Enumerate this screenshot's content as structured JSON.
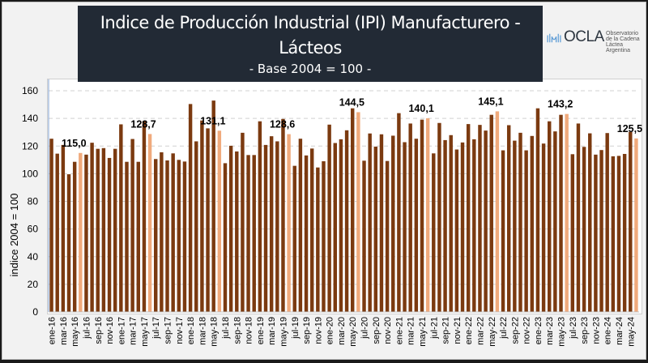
{
  "header": {
    "title": "Indice de Producción Industrial (IPI) Manufacturero - Lácteos",
    "title_line1": "Indice de Producción Industrial (IPI) Manufacturero -",
    "title_line2": "Lácteos",
    "subtitle": "- Base 2004 = 100 -"
  },
  "logo": {
    "name": "OCLA",
    "line1": "Observatorio",
    "line2": "de la Cadena Láctea",
    "line3": "Argentina",
    "icon": "wave-bars-icon"
  },
  "colors": {
    "bar_regular": "#7b3a10",
    "bar_highlight": "#f0aa7c",
    "title_bg": "#222a35",
    "gridline": "#d0d0d0"
  },
  "chart_data": {
    "type": "bar",
    "title": "Indice de Producción Industrial (IPI) Manufacturero - Lácteos",
    "subtitle": "- Base 2004 = 100 -",
    "xlabel": "",
    "ylabel": "indice 2004 = 100",
    "ylim": [
      0,
      160
    ],
    "yticks": [
      0,
      20,
      40,
      60,
      80,
      100,
      120,
      140,
      160
    ],
    "grid": true,
    "legend": "none",
    "x_tick_labels": [
      "ene-16",
      "mar-16",
      "may-16",
      "jul-16",
      "sep-16",
      "nov-16",
      "ene-17",
      "mar-17",
      "may-17",
      "jul-17",
      "sep-17",
      "nov-17",
      "ene-18",
      "mar-18",
      "may-18",
      "jul-18",
      "sep-18",
      "nov-18",
      "ene-19",
      "mar-19",
      "may-19",
      "jul-19",
      "sep-19",
      "nov-19",
      "ene-20",
      "mar-20",
      "may-20",
      "jul-20",
      "sep-20",
      "nov-20",
      "ene-21",
      "mar-21",
      "may-21",
      "jul-21",
      "sep-21",
      "nov-21",
      "ene-22",
      "mar-22",
      "may-22",
      "jul-22",
      "sep-22",
      "nov-22",
      "ene-23",
      "mar-23",
      "may-23",
      "jul-23",
      "sep-23",
      "nov-23",
      "ene-24",
      "mar-24",
      "may-24"
    ],
    "categories": [
      "ene-16",
      "feb-16",
      "mar-16",
      "abr-16",
      "may-16",
      "jun-16",
      "jul-16",
      "ago-16",
      "sep-16",
      "oct-16",
      "nov-16",
      "dic-16",
      "ene-17",
      "feb-17",
      "mar-17",
      "abr-17",
      "may-17",
      "jun-17",
      "jul-17",
      "ago-17",
      "sep-17",
      "oct-17",
      "nov-17",
      "dic-17",
      "ene-18",
      "feb-18",
      "mar-18",
      "abr-18",
      "may-18",
      "jun-18",
      "jul-18",
      "ago-18",
      "sep-18",
      "oct-18",
      "nov-18",
      "dic-18",
      "ene-19",
      "feb-19",
      "mar-19",
      "abr-19",
      "may-19",
      "jun-19",
      "jul-19",
      "ago-19",
      "sep-19",
      "oct-19",
      "nov-19",
      "dic-19",
      "ene-20",
      "feb-20",
      "mar-20",
      "abr-20",
      "may-20",
      "jun-20",
      "jul-20",
      "ago-20",
      "sep-20",
      "oct-20",
      "nov-20",
      "dic-20",
      "ene-21",
      "feb-21",
      "mar-21",
      "abr-21",
      "may-21",
      "jun-21",
      "jul-21",
      "ago-21",
      "sep-21",
      "oct-21",
      "nov-21",
      "dic-21",
      "ene-22",
      "feb-22",
      "mar-22",
      "abr-22",
      "may-22",
      "jun-22",
      "jul-22",
      "ago-22",
      "sep-22",
      "oct-22",
      "nov-22",
      "dic-22",
      "ene-23",
      "feb-23",
      "mar-23",
      "abr-23",
      "may-23",
      "jun-23",
      "jul-23",
      "ago-23",
      "sep-23",
      "oct-23",
      "nov-23",
      "dic-23",
      "ene-24",
      "feb-24",
      "mar-24",
      "abr-24",
      "may-24",
      "jun-24"
    ],
    "values": [
      125.3,
      114.5,
      120.8,
      99.6,
      108.6,
      115.0,
      113.8,
      122.4,
      118.0,
      118.5,
      111.4,
      118.0,
      135.7,
      108.6,
      125.1,
      108.6,
      138.0,
      128.7,
      110.6,
      115.5,
      109.6,
      114.7,
      110.0,
      108.8,
      150.4,
      123.4,
      138.5,
      132.8,
      152.9,
      131.1,
      107.6,
      120.2,
      116.1,
      129.6,
      113.5,
      113.5,
      137.9,
      120.8,
      127.1,
      123.4,
      139.6,
      128.6,
      105.7,
      125.3,
      113.2,
      118.2,
      104.5,
      109.0,
      135.5,
      122.2,
      124.9,
      131.4,
      147.3,
      144.5,
      109.4,
      129.1,
      119.6,
      128.5,
      109.2,
      127.5,
      143.8,
      122.8,
      136.3,
      125.3,
      139.1,
      140.1,
      114.7,
      136.7,
      124.3,
      127.9,
      117.5,
      122.6,
      135.9,
      124.9,
      135.3,
      131.2,
      142.6,
      145.1,
      116.9,
      135.1,
      123.9,
      129.6,
      116.9,
      127.3,
      147.3,
      121.8,
      137.9,
      130.6,
      142.6,
      143.2,
      114.1,
      136.3,
      119.4,
      129.2,
      113.8,
      117.1,
      129.4,
      112.6,
      112.9,
      114.3,
      130.2,
      125.5
    ],
    "highlighted": [
      "jun-16",
      "jun-17",
      "jun-18",
      "jun-19",
      "jun-20",
      "jun-21",
      "jun-22",
      "jun-23",
      "jun-24"
    ],
    "data_labels": [
      {
        "category": "jun-16",
        "text": "115,0"
      },
      {
        "category": "jun-17",
        "text": "128,7"
      },
      {
        "category": "jun-18",
        "text": "131,1"
      },
      {
        "category": "jun-19",
        "text": "128,6"
      },
      {
        "category": "jun-20",
        "text": "144,5"
      },
      {
        "category": "jun-21",
        "text": "140,1"
      },
      {
        "category": "jun-22",
        "text": "145,1"
      },
      {
        "category": "jun-23",
        "text": "143,2"
      },
      {
        "category": "jun-24",
        "text": "125,5"
      }
    ]
  }
}
